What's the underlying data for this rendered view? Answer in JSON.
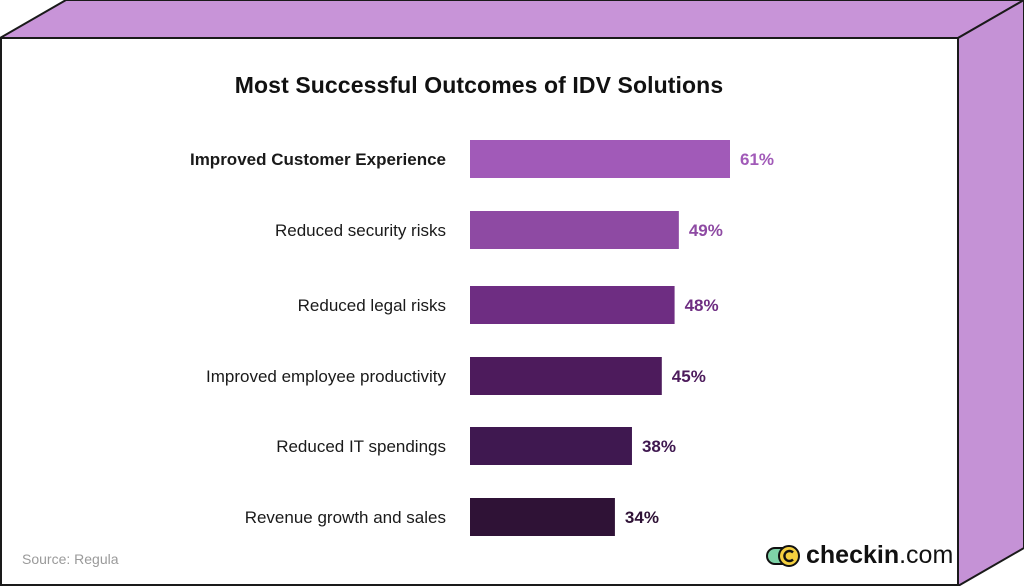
{
  "colors": {
    "frame_face": "#c894d8",
    "frame_side": "#c592d6",
    "outline": "#1a1a1a",
    "bar_colors": [
      "#a15ab8",
      "#8e4aa3",
      "#6e2d82",
      "#4d1b5c",
      "#3f1850",
      "#2f1236"
    ],
    "label_colors": [
      "#a15ab8",
      "#8e4aa3",
      "#6e2d82",
      "#4d1b5c",
      "#3f1850",
      "#2f1236"
    ]
  },
  "chart_data": {
    "type": "bar",
    "orientation": "horizontal",
    "title": "Most Successful Outcomes of IDV Solutions",
    "categories": [
      "Improved Customer Experience",
      "Reduced security risks",
      "Reduced legal risks",
      "Improved employee productivity",
      "Reduced IT spendings",
      "Revenue growth and sales"
    ],
    "values": [
      61,
      49,
      48,
      45,
      38,
      34
    ],
    "value_labels": [
      "61%",
      "49%",
      "48%",
      "45%",
      "38%",
      "34%"
    ],
    "highlighted_index": 0,
    "unit": "%",
    "xlim": [
      0,
      100
    ],
    "grid": false,
    "legend": "none"
  },
  "footer": {
    "source": "Source: Regula",
    "brand_bold": "checkin",
    "brand_rest": ".com"
  }
}
